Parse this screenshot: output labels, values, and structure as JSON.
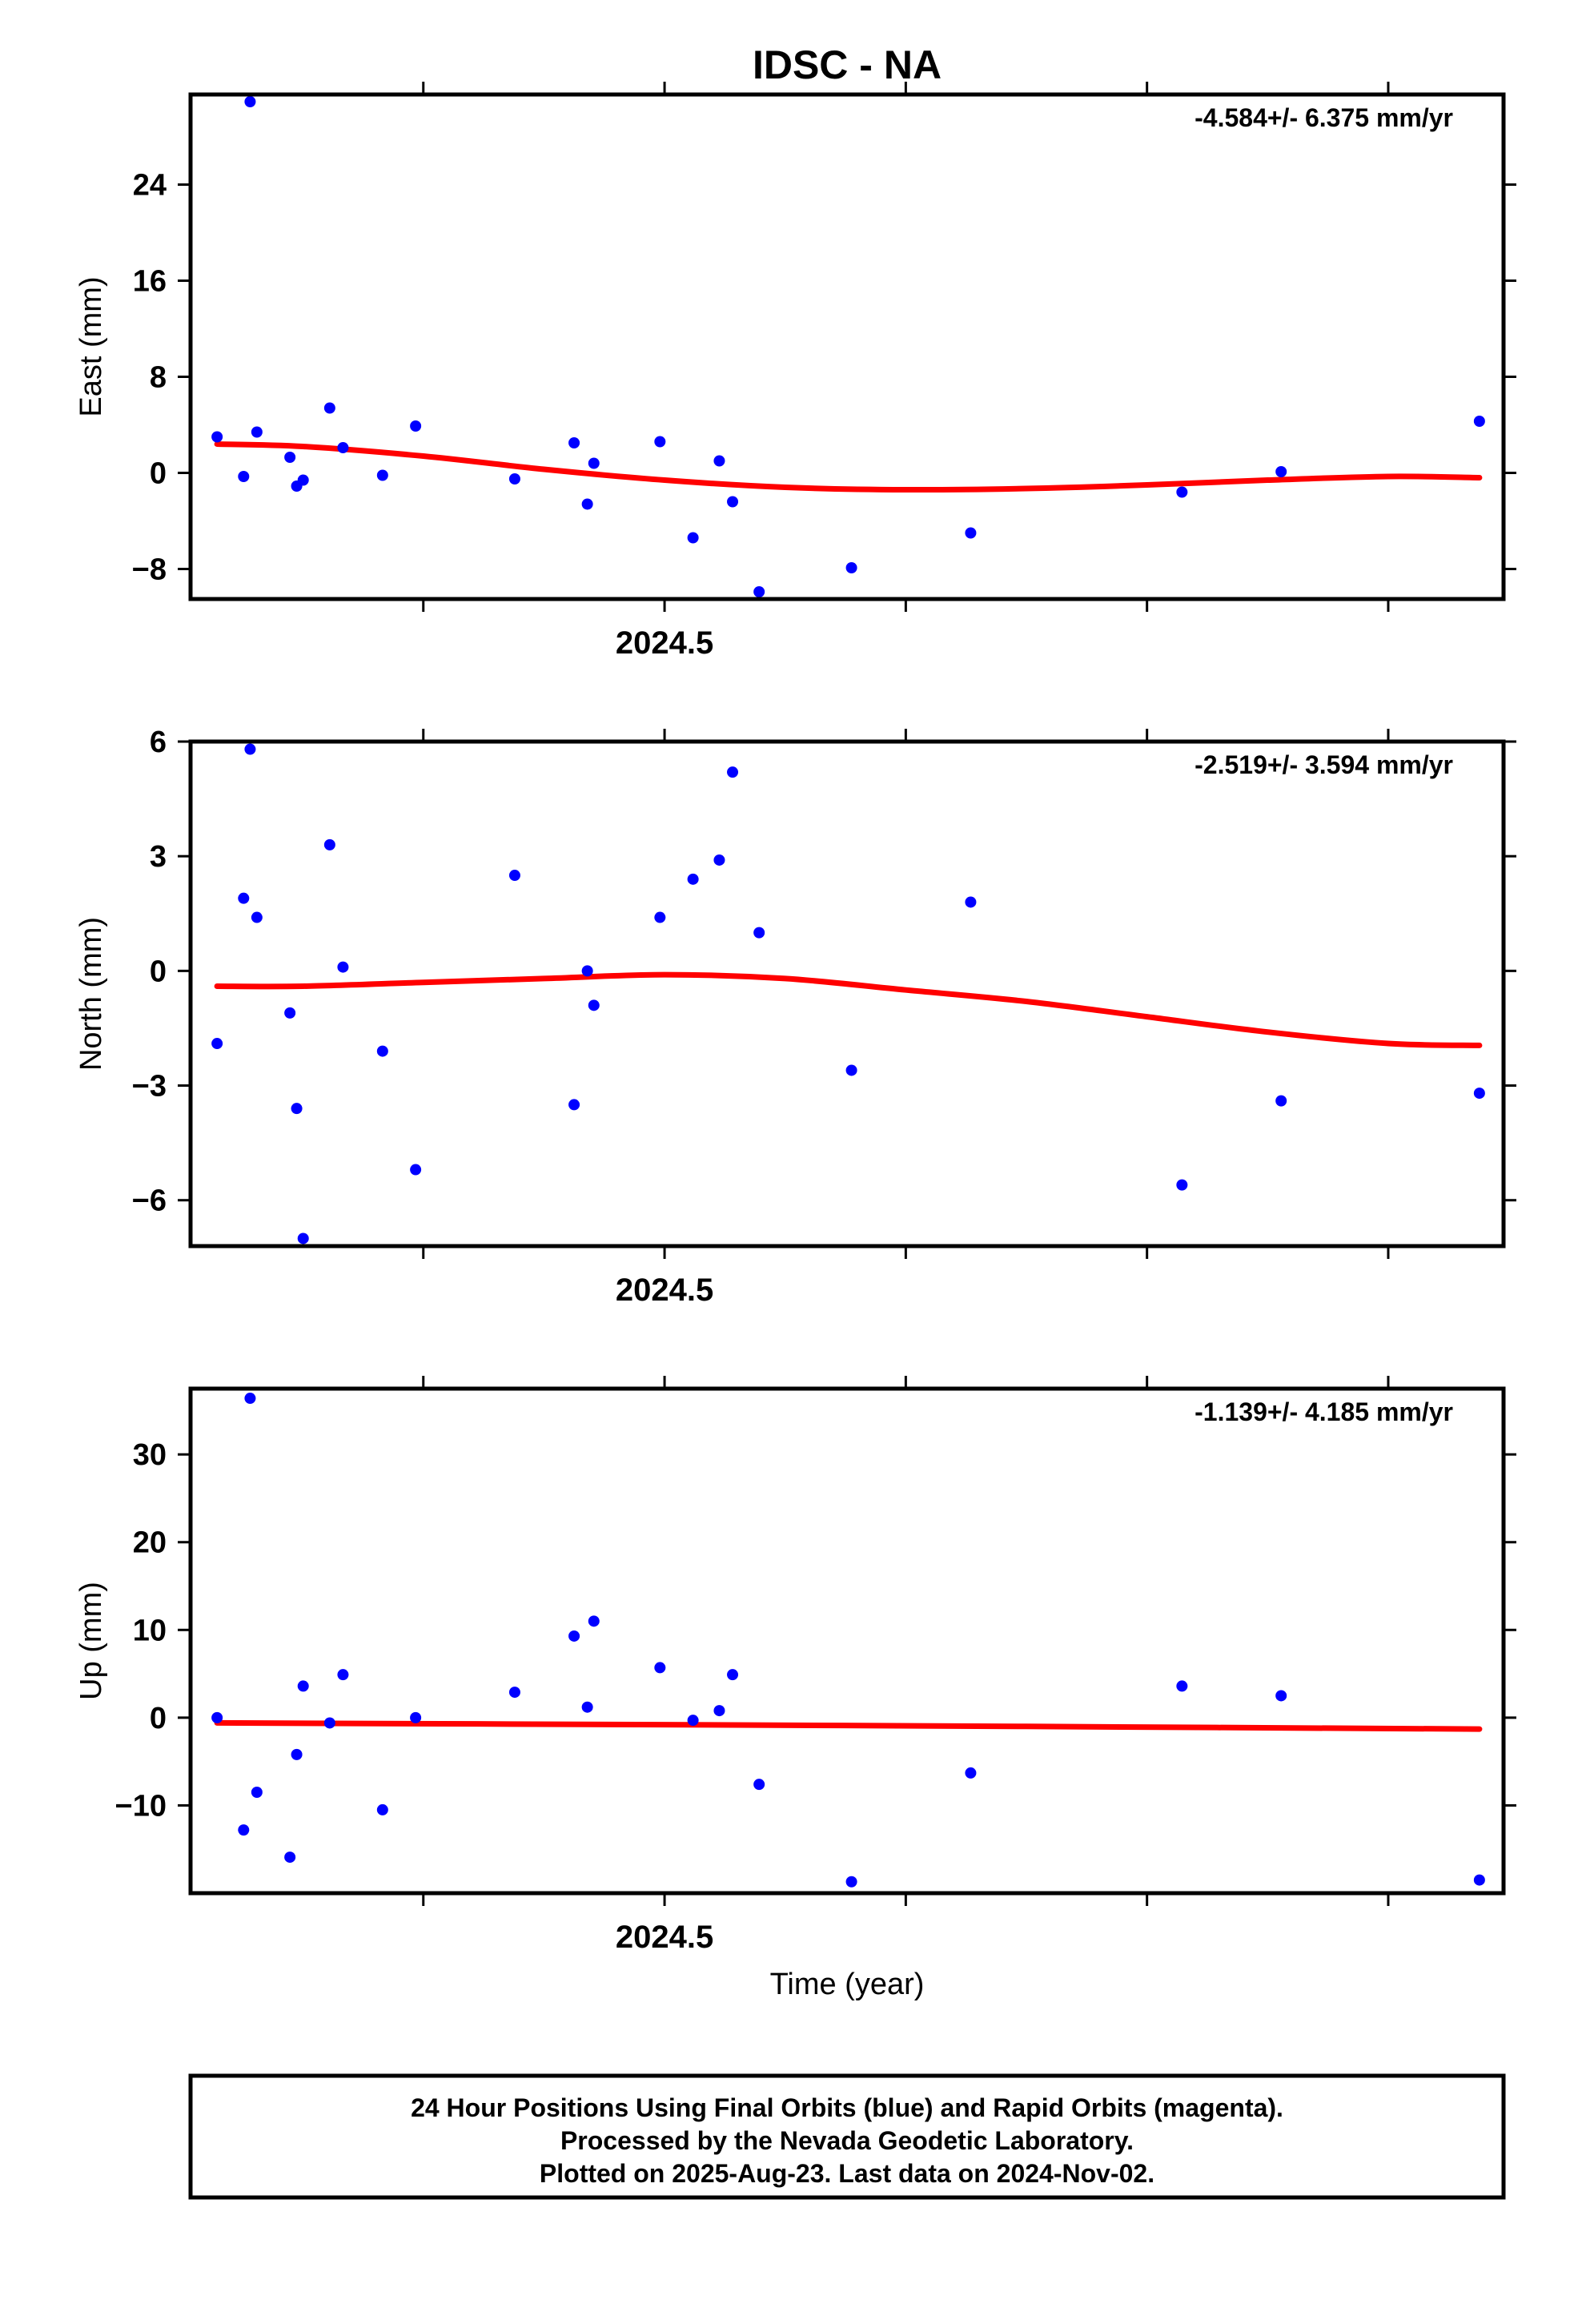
{
  "title": "IDSC - NA",
  "xlabel": "Time (year)",
  "footer": {
    "line1": "24 Hour Positions Using Final Orbits (blue) and Rapid Orbits (magenta).",
    "line2": "Processed by the Nevada Geodetic Laboratory.",
    "line3": "Plotted on 2025-Aug-23. Last data on 2024-Nov-02."
  },
  "colors": {
    "points": "#0000ff",
    "fit": "#ff0000",
    "frame": "#000000"
  },
  "chart_data": [
    {
      "type": "scatter",
      "name": "East",
      "ylabel": "East (mm)",
      "rate_label": "-4.584+/- 6.375 mm/yr",
      "xlim": [
        2024.3035,
        2024.8478
      ],
      "ylim": [
        -10.5,
        31.5
      ],
      "yticks": [
        -8,
        0,
        8,
        16,
        24
      ],
      "ytick_labels": [
        "−8",
        "0",
        "8",
        "16",
        "24"
      ],
      "xticks": [
        2024.4,
        2024.5,
        2024.6,
        2024.7,
        2024.8
      ],
      "xtick_labels": [
        "",
        "2024.5",
        "",
        "",
        ""
      ],
      "grid": false,
      "points": [
        [
          2024.3145,
          3.0
        ],
        [
          2024.3255,
          -0.3
        ],
        [
          2024.3282,
          30.9
        ],
        [
          2024.331,
          3.4
        ],
        [
          2024.3447,
          1.3
        ],
        [
          2024.3475,
          -1.1
        ],
        [
          2024.3502,
          -0.6
        ],
        [
          2024.3612,
          5.4
        ],
        [
          2024.3667,
          2.1
        ],
        [
          2024.3831,
          -0.2
        ],
        [
          2024.3968,
          3.9
        ],
        [
          2024.4379,
          -0.5
        ],
        [
          2024.4625,
          2.5
        ],
        [
          2024.468,
          -2.6
        ],
        [
          2024.4707,
          0.8
        ],
        [
          2024.4981,
          2.6
        ],
        [
          2024.5118,
          -5.4
        ],
        [
          2024.5227,
          1.0
        ],
        [
          2024.5282,
          -2.4
        ],
        [
          2024.5392,
          -9.9
        ],
        [
          2024.5775,
          -7.9
        ],
        [
          2024.6269,
          -5.0
        ],
        [
          2024.7145,
          -1.6
        ],
        [
          2024.7556,
          0.1
        ],
        [
          2024.8378,
          4.3
        ]
      ],
      "fit": [
        [
          2024.3145,
          2.4
        ],
        [
          2024.35,
          2.2
        ],
        [
          2024.4,
          1.4
        ],
        [
          2024.45,
          0.3
        ],
        [
          2024.5,
          -0.6
        ],
        [
          2024.55,
          -1.2
        ],
        [
          2024.6,
          -1.4
        ],
        [
          2024.65,
          -1.3
        ],
        [
          2024.7,
          -1.0
        ],
        [
          2024.75,
          -0.6
        ],
        [
          2024.8,
          -0.3
        ],
        [
          2024.8378,
          -0.4
        ]
      ]
    },
    {
      "type": "scatter",
      "name": "North",
      "ylabel": "North (mm)",
      "rate_label": "-2.519+/- 3.594 mm/yr",
      "xlim": [
        2024.3035,
        2024.8478
      ],
      "ylim": [
        -7.2,
        6.0
      ],
      "yticks": [
        -6,
        -3,
        0,
        3,
        6
      ],
      "ytick_labels": [
        "−6",
        "−3",
        "0",
        "3",
        "6"
      ],
      "xticks": [
        2024.4,
        2024.5,
        2024.6,
        2024.7,
        2024.8
      ],
      "xtick_labels": [
        "",
        "2024.5",
        "",
        "",
        ""
      ],
      "grid": false,
      "points": [
        [
          2024.3145,
          -1.9
        ],
        [
          2024.3255,
          1.9
        ],
        [
          2024.3282,
          5.8
        ],
        [
          2024.331,
          1.4
        ],
        [
          2024.3447,
          -1.1
        ],
        [
          2024.3475,
          -3.6
        ],
        [
          2024.3502,
          -7.0
        ],
        [
          2024.3612,
          3.3
        ],
        [
          2024.3667,
          0.1
        ],
        [
          2024.3831,
          -2.1
        ],
        [
          2024.3968,
          -5.2
        ],
        [
          2024.4379,
          2.5
        ],
        [
          2024.4625,
          -3.5
        ],
        [
          2024.468,
          0.0
        ],
        [
          2024.4707,
          -0.9
        ],
        [
          2024.4981,
          1.4
        ],
        [
          2024.5118,
          2.4
        ],
        [
          2024.5227,
          2.9
        ],
        [
          2024.5282,
          5.2
        ],
        [
          2024.5392,
          1.0
        ],
        [
          2024.5775,
          -2.6
        ],
        [
          2024.6269,
          1.8
        ],
        [
          2024.7145,
          -5.6
        ],
        [
          2024.7556,
          -3.4
        ],
        [
          2024.8378,
          -3.2
        ]
      ],
      "fit": [
        [
          2024.3145,
          -0.4
        ],
        [
          2024.35,
          -0.4
        ],
        [
          2024.4,
          -0.3
        ],
        [
          2024.45,
          -0.2
        ],
        [
          2024.5,
          -0.1
        ],
        [
          2024.55,
          -0.2
        ],
        [
          2024.6,
          -0.5
        ],
        [
          2024.65,
          -0.8
        ],
        [
          2024.7,
          -1.2
        ],
        [
          2024.75,
          -1.6
        ],
        [
          2024.8,
          -1.9
        ],
        [
          2024.8378,
          -1.95
        ]
      ]
    },
    {
      "type": "scatter",
      "name": "Up",
      "ylabel": "Up (mm)",
      "rate_label": "-1.139+/- 4.185 mm/yr",
      "xlim": [
        2024.3035,
        2024.8478
      ],
      "ylim": [
        -20.0,
        37.5
      ],
      "yticks": [
        -10,
        0,
        10,
        20,
        30
      ],
      "ytick_labels": [
        "−10",
        "0",
        "10",
        "20",
        "30"
      ],
      "xticks": [
        2024.4,
        2024.5,
        2024.6,
        2024.7,
        2024.8
      ],
      "xtick_labels": [
        "",
        "2024.5",
        "",
        "",
        ""
      ],
      "grid": false,
      "points": [
        [
          2024.3145,
          0.0
        ],
        [
          2024.3255,
          -12.8
        ],
        [
          2024.3282,
          36.4
        ],
        [
          2024.331,
          -8.5
        ],
        [
          2024.3447,
          -15.9
        ],
        [
          2024.3475,
          -4.2
        ],
        [
          2024.3502,
          3.6
        ],
        [
          2024.3612,
          -0.6
        ],
        [
          2024.3667,
          4.9
        ],
        [
          2024.3831,
          -10.5
        ],
        [
          2024.3968,
          0.0
        ],
        [
          2024.4379,
          2.9
        ],
        [
          2024.4625,
          9.3
        ],
        [
          2024.468,
          1.2
        ],
        [
          2024.4707,
          11.0
        ],
        [
          2024.4981,
          5.7
        ],
        [
          2024.5118,
          -0.3
        ],
        [
          2024.5227,
          0.8
        ],
        [
          2024.5282,
          4.9
        ],
        [
          2024.5392,
          -7.6
        ],
        [
          2024.5775,
          -18.7
        ],
        [
          2024.6269,
          -6.3
        ],
        [
          2024.7145,
          3.6
        ],
        [
          2024.7556,
          2.5
        ],
        [
          2024.8378,
          -18.5
        ]
      ],
      "fit": [
        [
          2024.3145,
          -0.6
        ],
        [
          2024.5,
          -0.8
        ],
        [
          2024.65,
          -1.0
        ],
        [
          2024.8378,
          -1.3
        ]
      ]
    }
  ]
}
